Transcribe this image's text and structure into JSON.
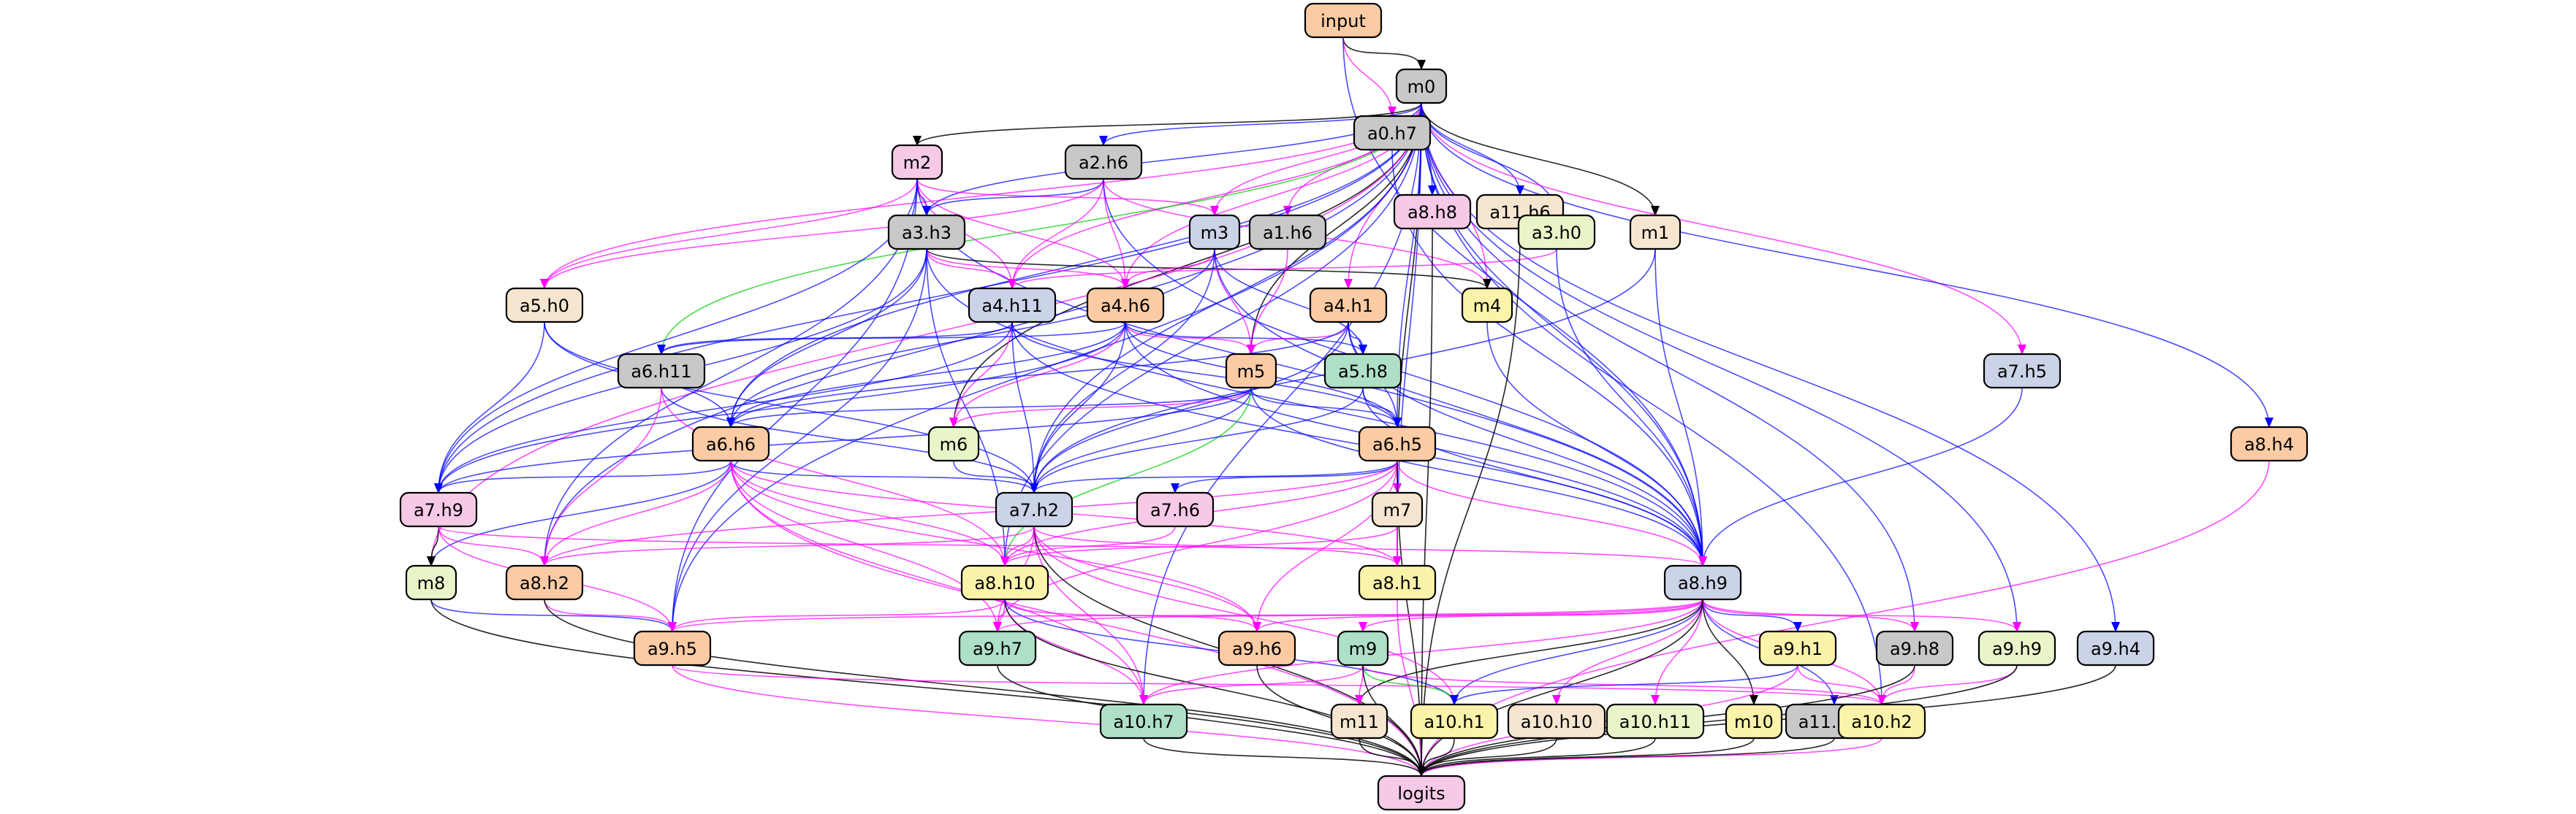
{
  "colors": {
    "edge_black": "#000000",
    "edge_blue": "#0000ff",
    "edge_magenta": "#ff00ff",
    "edge_green": "#00cc00",
    "gray": "#c8c8c8",
    "pink": "#f6c9e6",
    "peach": "#fccba4",
    "lightyellow": "#fbf3a9",
    "beige": "#f6e6d0",
    "lavender": "#cbd3e8",
    "mint": "#aee0c8",
    "palegreen": "#e8f5c9"
  },
  "nodes": [
    {
      "id": "input",
      "label": "input",
      "color": "peach"
    },
    {
      "id": "m0",
      "label": "m0",
      "color": "gray"
    },
    {
      "id": "a0.h7",
      "label": "a0.h7",
      "color": "gray"
    },
    {
      "id": "m2",
      "label": "m2",
      "color": "pink"
    },
    {
      "id": "a2.h6",
      "label": "a2.h6",
      "color": "gray"
    },
    {
      "id": "a8.h8",
      "label": "a8.h8",
      "color": "pink"
    },
    {
      "id": "a11.h6",
      "label": "a11.h6",
      "color": "beige"
    },
    {
      "id": "a3.h3",
      "label": "a3.h3",
      "color": "gray"
    },
    {
      "id": "m3",
      "label": "m3",
      "color": "lavender"
    },
    {
      "id": "a1.h6",
      "label": "a1.h6",
      "color": "gray"
    },
    {
      "id": "a3.h0",
      "label": "a3.h0",
      "color": "palegreen"
    },
    {
      "id": "m1",
      "label": "m1",
      "color": "beige"
    },
    {
      "id": "a5.h0",
      "label": "a5.h0",
      "color": "beige"
    },
    {
      "id": "a4.h11",
      "label": "a4.h11",
      "color": "lavender"
    },
    {
      "id": "a4.h6",
      "label": "a4.h6",
      "color": "peach"
    },
    {
      "id": "a4.h1",
      "label": "a4.h1",
      "color": "peach"
    },
    {
      "id": "m4",
      "label": "m4",
      "color": "lightyellow"
    },
    {
      "id": "a6.h11",
      "label": "a6.h11",
      "color": "gray"
    },
    {
      "id": "m5",
      "label": "m5",
      "color": "peach"
    },
    {
      "id": "a5.h8",
      "label": "a5.h8",
      "color": "mint"
    },
    {
      "id": "a7.h5",
      "label": "a7.h5",
      "color": "lavender"
    },
    {
      "id": "a8.h4",
      "label": "a8.h4",
      "color": "peach"
    },
    {
      "id": "a6.h6",
      "label": "a6.h6",
      "color": "peach"
    },
    {
      "id": "m6",
      "label": "m6",
      "color": "palegreen"
    },
    {
      "id": "a6.h5",
      "label": "a6.h5",
      "color": "peach"
    },
    {
      "id": "a7.h9",
      "label": "a7.h9",
      "color": "pink"
    },
    {
      "id": "a7.h2",
      "label": "a7.h2",
      "color": "lavender"
    },
    {
      "id": "a7.h6",
      "label": "a7.h6",
      "color": "pink"
    },
    {
      "id": "m7",
      "label": "m7",
      "color": "beige"
    },
    {
      "id": "m8",
      "label": "m8",
      "color": "palegreen"
    },
    {
      "id": "a8.h2",
      "label": "a8.h2",
      "color": "peach"
    },
    {
      "id": "a8.h10",
      "label": "a8.h10",
      "color": "lightyellow"
    },
    {
      "id": "a8.h1",
      "label": "a8.h1",
      "color": "lightyellow"
    },
    {
      "id": "a8.h9",
      "label": "a8.h9",
      "color": "lavender"
    },
    {
      "id": "a9.h5",
      "label": "a9.h5",
      "color": "peach"
    },
    {
      "id": "a9.h7",
      "label": "a9.h7",
      "color": "mint"
    },
    {
      "id": "a9.h6",
      "label": "a9.h6",
      "color": "peach"
    },
    {
      "id": "m9",
      "label": "m9",
      "color": "mint"
    },
    {
      "id": "a9.h1",
      "label": "a9.h1",
      "color": "lightyellow"
    },
    {
      "id": "a9.h8",
      "label": "a9.h8",
      "color": "gray"
    },
    {
      "id": "a9.h9",
      "label": "a9.h9",
      "color": "palegreen"
    },
    {
      "id": "a9.h4",
      "label": "a9.h4",
      "color": "lavender"
    },
    {
      "id": "a10.h7",
      "label": "a10.h7",
      "color": "mint"
    },
    {
      "id": "m11",
      "label": "m11",
      "color": "beige"
    },
    {
      "id": "a10.h1",
      "label": "a10.h1",
      "color": "lightyellow"
    },
    {
      "id": "a10.h10",
      "label": "a10.h10",
      "color": "beige"
    },
    {
      "id": "a10.h11",
      "label": "a10.h11",
      "color": "palegreen"
    },
    {
      "id": "m10",
      "label": "m10",
      "color": "lightyellow"
    },
    {
      "id": "a11.h10",
      "label": "a11.h10",
      "color": "gray"
    },
    {
      "id": "a10.h2",
      "label": "a10.h2",
      "color": "lightyellow"
    },
    {
      "id": "logits",
      "label": "logits",
      "color": "pink"
    }
  ],
  "edges": [
    [
      "input",
      "m0",
      "black"
    ],
    [
      "input",
      "a0.h7",
      "magenta"
    ],
    [
      "input",
      "a8.h9",
      "blue"
    ],
    [
      "a0.h7",
      "a8.h9",
      "blue"
    ],
    [
      "m0",
      "m2",
      "black"
    ],
    [
      "m0",
      "a2.h6",
      "blue"
    ],
    [
      "m0",
      "a3.h3",
      "blue"
    ],
    [
      "m0",
      "m3",
      "magenta"
    ],
    [
      "m0",
      "a1.h6",
      "magenta"
    ],
    [
      "m0",
      "a3.h0",
      "blue"
    ],
    [
      "m0",
      "m1",
      "black"
    ],
    [
      "m0",
      "a8.h8",
      "blue"
    ],
    [
      "m0",
      "a11.h6",
      "blue"
    ],
    [
      "m0",
      "a5.h0",
      "magenta"
    ],
    [
      "m0",
      "a4.h11",
      "magenta"
    ],
    [
      "m0",
      "a4.h6",
      "magenta"
    ],
    [
      "m0",
      "a4.h1",
      "magenta"
    ],
    [
      "m0",
      "m4",
      "magenta"
    ],
    [
      "m0",
      "a6.h11",
      "green"
    ],
    [
      "m0",
      "m5",
      "black"
    ],
    [
      "m0",
      "a7.h5",
      "magenta"
    ],
    [
      "m0",
      "a8.h4",
      "blue"
    ],
    [
      "m0",
      "a6.h6",
      "blue"
    ],
    [
      "m0",
      "m6",
      "black"
    ],
    [
      "m0",
      "a7.h9",
      "blue"
    ],
    [
      "m0",
      "a7.h2",
      "blue"
    ],
    [
      "m0",
      "m7",
      "black"
    ],
    [
      "m0",
      "m8",
      "magenta"
    ],
    [
      "m0",
      "a8.h2",
      "blue"
    ],
    [
      "m0",
      "a8.h10",
      "blue"
    ],
    [
      "m0",
      "a8.h1",
      "blue"
    ],
    [
      "m0",
      "a8.h9",
      "blue"
    ],
    [
      "m0",
      "a9.h5",
      "blue"
    ],
    [
      "m0",
      "a9.h8",
      "blue"
    ],
    [
      "m0",
      "a9.h9",
      "blue"
    ],
    [
      "m0",
      "a9.h4",
      "blue"
    ],
    [
      "m0",
      "a10.h7",
      "blue"
    ],
    [
      "m0",
      "a10.h2",
      "blue"
    ],
    [
      "m0",
      "a6.h5",
      "blue"
    ],
    [
      "m2",
      "a3.h3",
      "blue"
    ],
    [
      "m2",
      "m3",
      "magenta"
    ],
    [
      "m2",
      "a5.h0",
      "magenta"
    ],
    [
      "m2",
      "a4.h11",
      "magenta"
    ],
    [
      "m2",
      "a4.h6",
      "magenta"
    ],
    [
      "m2",
      "a7.h9",
      "blue"
    ],
    [
      "m2",
      "a8.h2",
      "blue"
    ],
    [
      "m2",
      "a9.h5",
      "blue"
    ],
    [
      "m2",
      "a8.h9",
      "blue"
    ],
    [
      "a2.h6",
      "a3.h3",
      "blue"
    ],
    [
      "a2.h6",
      "a4.h11",
      "magenta"
    ],
    [
      "a2.h6",
      "a4.h6",
      "magenta"
    ],
    [
      "a2.h6",
      "m4",
      "magenta"
    ],
    [
      "a2.h6",
      "a5.h0",
      "magenta"
    ],
    [
      "a2.h6",
      "a8.h9",
      "blue"
    ],
    [
      "a3.h3",
      "a4.h11",
      "magenta"
    ],
    [
      "a3.h3",
      "a4.h6",
      "magenta"
    ],
    [
      "a3.h3",
      "m4",
      "black"
    ],
    [
      "a3.h3",
      "a7.h9",
      "blue"
    ],
    [
      "a3.h3",
      "a6.h6",
      "blue"
    ],
    [
      "a3.h3",
      "a8.h10",
      "blue"
    ],
    [
      "a3.h3",
      "a9.h5",
      "blue"
    ],
    [
      "a3.h3",
      "a8.h9",
      "blue"
    ],
    [
      "m3",
      "a4.h6",
      "magenta"
    ],
    [
      "m3",
      "m5",
      "magenta"
    ],
    [
      "m3",
      "a5.h8",
      "blue"
    ],
    [
      "m3",
      "a7.h2",
      "blue"
    ],
    [
      "m3",
      "a6.h6",
      "blue"
    ],
    [
      "m3",
      "a8.h9",
      "blue"
    ],
    [
      "a1.h6",
      "m5",
      "magenta"
    ],
    [
      "a3.h0",
      "a4.h11",
      "magenta"
    ],
    [
      "a3.h0",
      "a8.h9",
      "blue"
    ],
    [
      "m1",
      "a7.h2",
      "blue"
    ],
    [
      "m1",
      "a8.h9",
      "blue"
    ],
    [
      "a5.h0",
      "a7.h9",
      "blue"
    ],
    [
      "a5.h0",
      "a6.h6",
      "blue"
    ],
    [
      "a5.h0",
      "a7.h2",
      "blue"
    ],
    [
      "a4.h11",
      "a6.h11",
      "blue"
    ],
    [
      "a4.h11",
      "m6",
      "magenta"
    ],
    [
      "a4.h11",
      "a7.h2",
      "blue"
    ],
    [
      "a4.h11",
      "a7.h9",
      "blue"
    ],
    [
      "a4.h11",
      "a6.h5",
      "blue"
    ],
    [
      "a4.h11",
      "a8.h9",
      "blue"
    ],
    [
      "a4.h6",
      "m5",
      "magenta"
    ],
    [
      "a4.h6",
      "a5.h8",
      "blue"
    ],
    [
      "a4.h6",
      "a6.h11",
      "blue"
    ],
    [
      "a4.h6",
      "m6",
      "magenta"
    ],
    [
      "a4.h6",
      "a6.h6",
      "blue"
    ],
    [
      "a4.h6",
      "a7.h2",
      "blue"
    ],
    [
      "a4.h6",
      "a7.h9",
      "blue"
    ],
    [
      "a4.h6",
      "a6.h5",
      "blue"
    ],
    [
      "a4.h6",
      "a8.h9",
      "blue"
    ],
    [
      "a4.h1",
      "m5",
      "magenta"
    ],
    [
      "a4.h1",
      "a5.h8",
      "blue"
    ],
    [
      "a4.h1",
      "a6.h6",
      "blue"
    ],
    [
      "a4.h1",
      "a7.h2",
      "blue"
    ],
    [
      "a4.h1",
      "a8.h9",
      "blue"
    ],
    [
      "a4.h1",
      "a6.h5",
      "blue"
    ],
    [
      "m4",
      "a8.h9",
      "blue"
    ],
    [
      "a6.h11",
      "a7.h2",
      "blue"
    ],
    [
      "a6.h11",
      "a8.h2",
      "magenta"
    ],
    [
      "a6.h11",
      "a8.h10",
      "magenta"
    ],
    [
      "m5",
      "m6",
      "magenta"
    ],
    [
      "m5",
      "a6.h5",
      "blue"
    ],
    [
      "m5",
      "a6.h6",
      "blue"
    ],
    [
      "m5",
      "a7.h2",
      "blue"
    ],
    [
      "m5",
      "a7.h9",
      "blue"
    ],
    [
      "m5",
      "a8.h10",
      "green"
    ],
    [
      "m5",
      "a8.h9",
      "blue"
    ],
    [
      "a5.h8",
      "a6.h5",
      "blue"
    ],
    [
      "a5.h8",
      "a7.h2",
      "blue"
    ],
    [
      "a5.h8",
      "a8.h9",
      "blue"
    ],
    [
      "a7.h5",
      "a8.h9",
      "blue"
    ],
    [
      "a8.h4",
      "logits",
      "magenta"
    ],
    [
      "a6.h6",
      "a7.h9",
      "blue"
    ],
    [
      "a6.h6",
      "a7.h2",
      "blue"
    ],
    [
      "a6.h6",
      "m8",
      "blue"
    ],
    [
      "a6.h6",
      "a8.h2",
      "magenta"
    ],
    [
      "a6.h6",
      "a8.h10",
      "magenta"
    ],
    [
      "a6.h6",
      "a8.h1",
      "magenta"
    ],
    [
      "a6.h6",
      "a9.h7",
      "magenta"
    ],
    [
      "a6.h6",
      "a9.h6",
      "magenta"
    ],
    [
      "a6.h6",
      "a10.h7",
      "magenta"
    ],
    [
      "a6.h6",
      "logits",
      "magenta"
    ],
    [
      "m6",
      "a7.h2",
      "blue"
    ],
    [
      "a6.h5",
      "a7.h2",
      "blue"
    ],
    [
      "a6.h5",
      "a7.h6",
      "blue"
    ],
    [
      "a6.h5",
      "m7",
      "magenta"
    ],
    [
      "a6.h5",
      "a8.h1",
      "magenta"
    ],
    [
      "a6.h5",
      "a8.h9",
      "magenta"
    ],
    [
      "a6.h5",
      "a8.h10",
      "magenta"
    ],
    [
      "a6.h5",
      "a9.h6",
      "magenta"
    ],
    [
      "a6.h5",
      "a9.h7",
      "magenta"
    ],
    [
      "a6.h5",
      "logits",
      "black"
    ],
    [
      "a6.h5",
      "a8.h2",
      "magenta"
    ],
    [
      "a7.h9",
      "m8",
      "black"
    ],
    [
      "a7.h9",
      "a8.h2",
      "magenta"
    ],
    [
      "a7.h9",
      "a8.h9",
      "magenta"
    ],
    [
      "a7.h9",
      "a9.h5",
      "magenta"
    ],
    [
      "a7.h2",
      "a8.h10",
      "magenta"
    ],
    [
      "a7.h2",
      "a8.h2",
      "magenta"
    ],
    [
      "a7.h2",
      "a8.h1",
      "magenta"
    ],
    [
      "a7.h2",
      "a9.h7",
      "magenta"
    ],
    [
      "a7.h2",
      "a9.h6",
      "magenta"
    ],
    [
      "a7.h2",
      "a10.h7",
      "magenta"
    ],
    [
      "a7.h2",
      "logits",
      "black"
    ],
    [
      "a7.h2",
      "a10.h1",
      "magenta"
    ],
    [
      "a7.h6",
      "a8.h10",
      "magenta"
    ],
    [
      "m7",
      "a8.h10",
      "magenta"
    ],
    [
      "m7",
      "a8.h1",
      "magenta"
    ],
    [
      "m8",
      "a9.h5",
      "blue"
    ],
    [
      "m8",
      "logits",
      "black"
    ],
    [
      "a8.h2",
      "a9.h5",
      "magenta"
    ],
    [
      "a8.h2",
      "logits",
      "black"
    ],
    [
      "a8.h10",
      "a9.h7",
      "magenta"
    ],
    [
      "a8.h10",
      "a9.h5",
      "magenta"
    ],
    [
      "a8.h10",
      "a9.h6",
      "magenta"
    ],
    [
      "a8.h10",
      "a10.h7",
      "magenta"
    ],
    [
      "a8.h10",
      "logits",
      "black"
    ],
    [
      "a8.h10",
      "a10.h1",
      "blue"
    ],
    [
      "a8.h1",
      "logits",
      "magenta"
    ],
    [
      "a8.h9",
      "a9.h5",
      "magenta"
    ],
    [
      "a8.h9",
      "a9.h7",
      "magenta"
    ],
    [
      "a8.h9",
      "a9.h6",
      "magenta"
    ],
    [
      "a8.h9",
      "m9",
      "magenta"
    ],
    [
      "a8.h9",
      "a9.h1",
      "blue"
    ],
    [
      "a8.h9",
      "a9.h8",
      "magenta"
    ],
    [
      "a8.h9",
      "a9.h9",
      "magenta"
    ],
    [
      "a8.h9",
      "a10.h7",
      "magenta"
    ],
    [
      "a8.h9",
      "m11",
      "black"
    ],
    [
      "a8.h9",
      "a10.h1",
      "blue"
    ],
    [
      "a8.h9",
      "a10.h10",
      "magenta"
    ],
    [
      "a8.h9",
      "a10.h11",
      "magenta"
    ],
    [
      "a8.h9",
      "m10",
      "black"
    ],
    [
      "a8.h9",
      "a11.h10",
      "blue"
    ],
    [
      "a8.h9",
      "a10.h2",
      "magenta"
    ],
    [
      "a8.h9",
      "logits",
      "black"
    ],
    [
      "a9.h5",
      "logits",
      "magenta"
    ],
    [
      "a9.h5",
      "a10.h2",
      "magenta"
    ],
    [
      "a9.h7",
      "logits",
      "black"
    ],
    [
      "a9.h6",
      "logits",
      "black"
    ],
    [
      "m9",
      "a10.h7",
      "magenta"
    ],
    [
      "m9",
      "m11",
      "magenta"
    ],
    [
      "m9",
      "a10.h1",
      "green"
    ],
    [
      "m9",
      "a10.h2",
      "magenta"
    ],
    [
      "m9",
      "logits",
      "black"
    ],
    [
      "a9.h1",
      "a10.h1",
      "blue"
    ],
    [
      "a9.h1",
      "a10.h2",
      "magenta"
    ],
    [
      "a9.h1",
      "logits",
      "magenta"
    ],
    [
      "a9.h8",
      "a10.h2",
      "magenta"
    ],
    [
      "a9.h8",
      "logits",
      "black"
    ],
    [
      "a9.h9",
      "a10.h2",
      "magenta"
    ],
    [
      "a9.h9",
      "logits",
      "black"
    ],
    [
      "a9.h4",
      "logits",
      "black"
    ],
    [
      "a10.h7",
      "logits",
      "black"
    ],
    [
      "m11",
      "logits",
      "black"
    ],
    [
      "a10.h1",
      "logits",
      "black"
    ],
    [
      "a10.h10",
      "logits",
      "black"
    ],
    [
      "a10.h11",
      "logits",
      "black"
    ],
    [
      "m10",
      "logits",
      "black"
    ],
    [
      "a11.h10",
      "logits",
      "black"
    ],
    [
      "a10.h2",
      "logits",
      "magenta"
    ],
    [
      "a8.h8",
      "logits",
      "black"
    ],
    [
      "a11.h6",
      "logits",
      "black"
    ]
  ]
}
